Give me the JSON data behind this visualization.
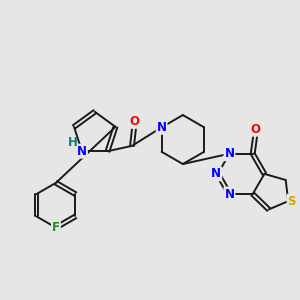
{
  "bg_color": "#e6e6e6",
  "bond_color": "#1a1a1a",
  "bond_width": 1.4,
  "atom_colors": {
    "N": "#0000ff",
    "O": "#ff0000",
    "S": "#ccaa00",
    "F": "#228B22",
    "NH": "#008080",
    "C": "#1a1a1a"
  },
  "font_size_atom": 8.5,
  "font_size_H": 7.5,
  "xlim": [
    0,
    10
  ],
  "ylim": [
    0,
    10
  ]
}
